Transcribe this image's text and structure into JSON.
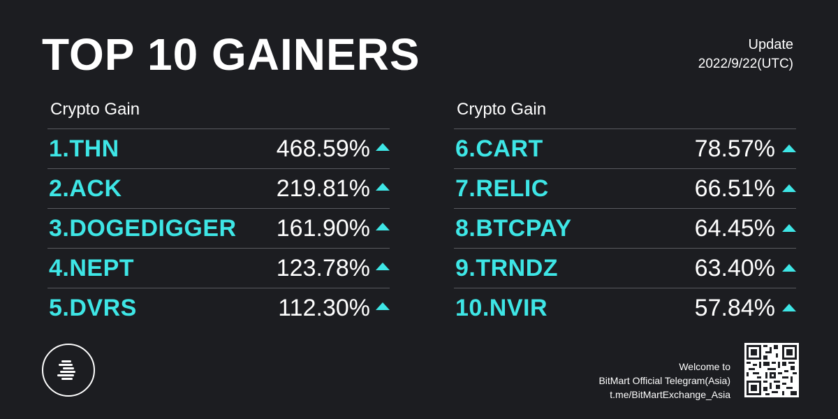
{
  "title": "TOP 10 GAINERS",
  "update": {
    "label": "Update",
    "date": "2022/9/22(UTC)"
  },
  "columns": [
    {
      "header": "Crypto Gain",
      "rows": [
        {
          "name": "1.THN",
          "gain": "468.59%"
        },
        {
          "name": "2.ACK",
          "gain": "219.81%"
        },
        {
          "name": "3.DOGEDIGGER",
          "gain": "161.90%"
        },
        {
          "name": "4.NEPT",
          "gain": "123.78%"
        },
        {
          "name": "5.DVRS",
          "gain": "112.30%"
        }
      ]
    },
    {
      "header": "Crypto Gain",
      "rows": [
        {
          "name": "6.CART",
          "gain": "78.57%"
        },
        {
          "name": "7.RELIC",
          "gain": "66.51%"
        },
        {
          "name": "8.BTCPAY",
          "gain": "64.45%"
        },
        {
          "name": "9.TRNDZ",
          "gain": "63.40%"
        },
        {
          "name": "10.NVIR",
          "gain": "57.84%"
        }
      ]
    }
  ],
  "footer": {
    "line1": "Welcome to",
    "line2": "BitMart Official Telegram(Asia)",
    "line3": "t.me/BitMartExchange_Asia"
  },
  "icons": {
    "logo": "bitmart-logo-icon",
    "qr": "qr-code-icon",
    "arrow": "triangle-up-icon"
  },
  "colors": {
    "background": "#1c1d21",
    "accent": "#3ee6e6",
    "text": "#ffffff"
  }
}
